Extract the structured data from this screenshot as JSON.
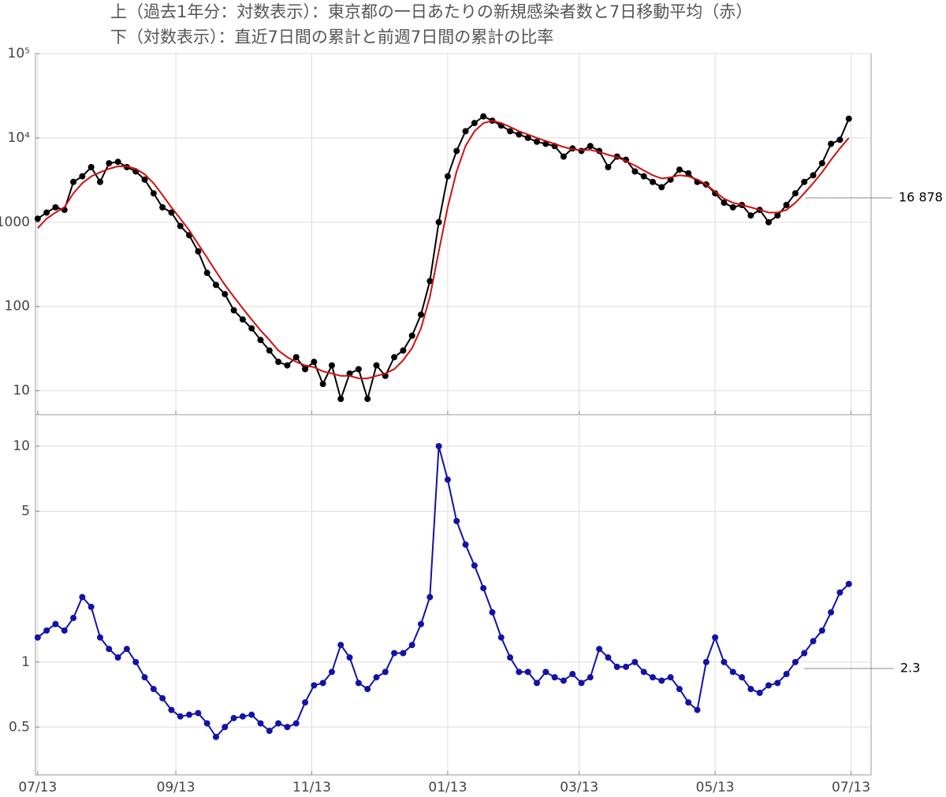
{
  "chart_data": [
    {
      "type": "line",
      "title": "上（過去1年分：対数表示）：東京都の一日あたりの新規感染者数と7日移動平均（赤）",
      "log_scale": true,
      "grid": true,
      "annotation": "16 878",
      "xlim": [
        -1,
        374
      ],
      "xticks": [
        0,
        62,
        123,
        184,
        243,
        304,
        365
      ],
      "ylim": [
        5.2,
        100000
      ],
      "yticks": [
        10,
        100,
        1000,
        {
          "value": 10000,
          "label": "10⁴"
        },
        {
          "value": 100000,
          "label": "10⁵"
        }
      ],
      "x": [
        0,
        4,
        8,
        12,
        16,
        20,
        24,
        28,
        32,
        36,
        40,
        44,
        48,
        52,
        56,
        60,
        64,
        68,
        72,
        76,
        80,
        84,
        88,
        92,
        96,
        100,
        104,
        108,
        112,
        116,
        120,
        124,
        128,
        132,
        136,
        140,
        144,
        148,
        152,
        156,
        160,
        164,
        168,
        172,
        176,
        180,
        184,
        188,
        192,
        196,
        200,
        204,
        208,
        212,
        216,
        220,
        224,
        228,
        232,
        236,
        240,
        244,
        248,
        252,
        256,
        260,
        264,
        268,
        272,
        276,
        280,
        284,
        288,
        292,
        296,
        300,
        304,
        308,
        312,
        316,
        320,
        324,
        328,
        332,
        336,
        340,
        344,
        348,
        352,
        356,
        360,
        364
      ],
      "series": [
        {
          "color": "#000000",
          "marker": true,
          "values": [
            1100,
            1300,
            1500,
            1400,
            3000,
            3500,
            4500,
            3000,
            5000,
            5200,
            4500,
            4000,
            3200,
            2200,
            1500,
            1300,
            900,
            700,
            450,
            250,
            180,
            140,
            90,
            70,
            55,
            40,
            30,
            22,
            20,
            25,
            18,
            22,
            12,
            20,
            8,
            16,
            18,
            8,
            20,
            15,
            25,
            30,
            45,
            80,
            200,
            1000,
            3500,
            7000,
            12000,
            15000,
            18000,
            16000,
            14000,
            12000,
            11000,
            10000,
            9000,
            8500,
            8000,
            6000,
            7500,
            7000,
            8000,
            7000,
            4500,
            6000,
            5500,
            4000,
            3500,
            3000,
            2600,
            3200,
            4200,
            3800,
            3000,
            2800,
            2200,
            1700,
            1500,
            1600,
            1200,
            1400,
            1000,
            1200,
            1600,
            2200,
            3000,
            3600,
            5000,
            8500,
            9500,
            16878
          ]
        },
        {
          "color": "#d01010",
          "marker": false,
          "values": [
            850,
            1100,
            1300,
            1500,
            2200,
            2900,
            3500,
            3900,
            4300,
            4600,
            4600,
            4300,
            3700,
            2900,
            2100,
            1500,
            1100,
            800,
            550,
            380,
            260,
            180,
            130,
            95,
            70,
            52,
            40,
            30,
            25,
            22,
            20,
            19,
            17,
            16,
            15,
            15,
            14,
            14,
            15,
            16,
            18,
            23,
            32,
            55,
            130,
            450,
            1500,
            4000,
            8000,
            12000,
            15000,
            16000,
            15000,
            13500,
            12000,
            11000,
            10000,
            9200,
            8500,
            7800,
            7300,
            7200,
            7200,
            6800,
            6300,
            5900,
            5300,
            4700,
            4100,
            3600,
            3300,
            3400,
            3600,
            3500,
            3200,
            2800,
            2300,
            1900,
            1700,
            1600,
            1500,
            1400,
            1300,
            1300,
            1400,
            1700,
            2200,
            2900,
            3900,
            5500,
            7500,
            10000
          ]
        }
      ]
    },
    {
      "type": "line",
      "title": "下（対数表示）：直近7日間の累計と前週7日間の累計の比率",
      "log_scale": true,
      "grid": true,
      "annotation": "2.3",
      "xlim": [
        -1,
        374
      ],
      "xticks": [
        {
          "value": 0,
          "label": "07/13"
        },
        {
          "value": 62,
          "label": "09/13"
        },
        {
          "value": 123,
          "label": "11/13"
        },
        {
          "value": 184,
          "label": "01/13"
        },
        {
          "value": 243,
          "label": "03/13"
        },
        {
          "value": 304,
          "label": "05/13"
        },
        {
          "value": 365,
          "label": "07/13"
        }
      ],
      "ylim": [
        0.3,
        14
      ],
      "yticks": [
        0.5,
        1,
        5,
        10
      ],
      "x": [
        0,
        4,
        8,
        12,
        16,
        20,
        24,
        28,
        32,
        36,
        40,
        44,
        48,
        52,
        56,
        60,
        64,
        68,
        72,
        76,
        80,
        84,
        88,
        92,
        96,
        100,
        104,
        108,
        112,
        116,
        120,
        124,
        128,
        132,
        136,
        140,
        144,
        148,
        152,
        156,
        160,
        164,
        168,
        172,
        176,
        180,
        184,
        188,
        192,
        196,
        200,
        204,
        208,
        212,
        216,
        220,
        224,
        228,
        232,
        236,
        240,
        244,
        248,
        252,
        256,
        260,
        264,
        268,
        272,
        276,
        280,
        284,
        288,
        292,
        296,
        300,
        304,
        308,
        312,
        316,
        320,
        324,
        328,
        332,
        336,
        340,
        344,
        348,
        352,
        356,
        360,
        364
      ],
      "series": [
        {
          "color": "#1212a8",
          "marker": true,
          "values": [
            1.3,
            1.4,
            1.5,
            1.4,
            1.6,
            2.0,
            1.8,
            1.3,
            1.15,
            1.05,
            1.15,
            1.0,
            0.85,
            0.75,
            0.68,
            0.6,
            0.56,
            0.57,
            0.58,
            0.52,
            0.45,
            0.5,
            0.55,
            0.56,
            0.57,
            0.52,
            0.48,
            0.52,
            0.5,
            0.52,
            0.65,
            0.78,
            0.8,
            0.9,
            1.2,
            1.05,
            0.8,
            0.75,
            0.85,
            0.9,
            1.1,
            1.1,
            1.2,
            1.5,
            2.0,
            10,
            7.0,
            4.5,
            3.5,
            2.8,
            2.2,
            1.7,
            1.3,
            1.05,
            0.9,
            0.9,
            0.8,
            0.9,
            0.85,
            0.82,
            0.88,
            0.8,
            0.85,
            1.15,
            1.05,
            0.95,
            0.95,
            1.0,
            0.9,
            0.85,
            0.82,
            0.85,
            0.75,
            0.65,
            0.6,
            1.0,
            1.3,
            1.0,
            0.9,
            0.85,
            0.75,
            0.72,
            0.78,
            0.8,
            0.88,
            1.0,
            1.1,
            1.25,
            1.4,
            1.7,
            2.1,
            2.3
          ]
        }
      ]
    }
  ]
}
